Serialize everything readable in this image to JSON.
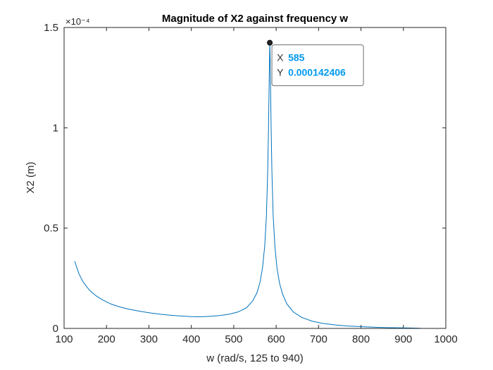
{
  "chart_data": {
    "type": "line",
    "title": "Magnitude of X2 against frequency w",
    "xlabel": "w (rad/s, 125 to 940)",
    "ylabel": "X2 (m)",
    "xlim": [
      100,
      1000
    ],
    "ylim": [
      0,
      0.00015
    ],
    "x_ticks": [
      100,
      200,
      300,
      400,
      500,
      600,
      700,
      800,
      900,
      1000
    ],
    "x_tick_labels": [
      "100",
      "200",
      "300",
      "400",
      "500",
      "600",
      "700",
      "800",
      "900",
      "1000"
    ],
    "y_ticks": [
      0,
      5e-05,
      0.0001,
      0.00015
    ],
    "y_tick_labels": [
      "0",
      "0.5",
      "1",
      "1.5"
    ],
    "y_exponent_label": "×10⁻⁴",
    "grid": false,
    "line_color": "#0072BD",
    "series": [
      {
        "x": [
          125,
          135,
          145,
          160,
          175,
          190,
          210,
          230,
          250,
          275,
          300,
          325,
          350,
          375,
          400,
          415,
          430,
          450,
          470,
          490,
          510,
          530,
          545,
          555,
          562,
          568,
          573,
          577,
          580,
          582,
          584,
          585,
          586,
          588,
          590,
          593,
          597,
          602,
          608,
          615,
          625,
          640,
          660,
          685,
          710,
          740,
          770,
          800,
          830,
          860,
          890,
          915,
          940
        ],
        "y": [
          3.35e-05,
          2.72e-05,
          2.31e-05,
          1.9e-05,
          1.63e-05,
          1.43e-05,
          1.22e-05,
          1.08e-05,
          9.7e-06,
          8.7e-06,
          7.8e-06,
          7.1e-06,
          6.6e-06,
          6.2e-06,
          5.9e-06,
          5.8e-06,
          5.9e-06,
          6.1e-06,
          6.5e-06,
          7.1e-06,
          8.2e-06,
          1.03e-05,
          1.38e-05,
          1.79e-05,
          2.3e-05,
          3.05e-05,
          4.1e-05,
          5.6e-05,
          7.8e-05,
          0.0001,
          0.00013,
          0.000142406,
          0.000133,
          0.000102,
          7.8e-05,
          5.6e-05,
          4.1e-05,
          3e-05,
          2.25e-05,
          1.72e-05,
          1.23e-05,
          8.3e-06,
          5.5e-06,
          3.6e-06,
          2.5e-06,
          1.7e-06,
          1.2e-06,
          9e-07,
          6e-07,
          4e-07,
          3e-07,
          2e-07,
          1e-07
        ]
      }
    ],
    "datatip": {
      "x_key": "X",
      "x_value": "585",
      "y_key": "Y",
      "y_value": "0.000142406",
      "x": 585,
      "y": 0.000142406
    }
  }
}
